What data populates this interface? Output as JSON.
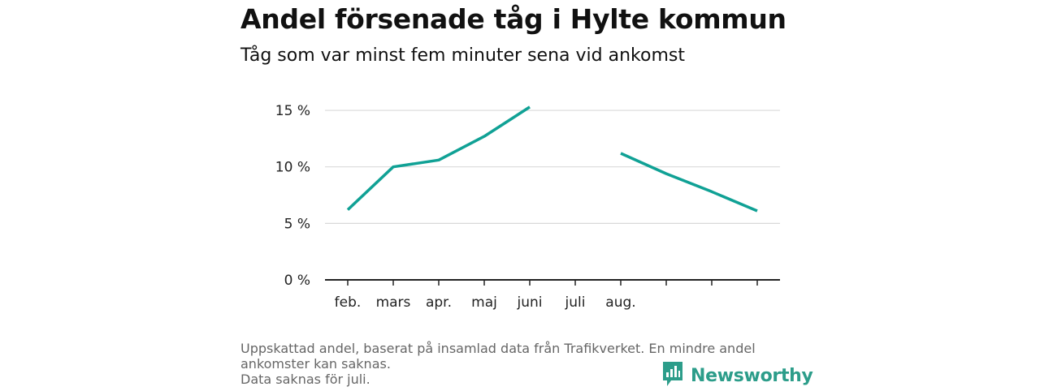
{
  "header": {
    "title": "Andel försenade tåg i Hylte kommun",
    "subtitle": "Tåg som var minst fem minuter sena vid ankomst"
  },
  "chart_data": {
    "type": "line",
    "categories": [
      "feb.",
      "mars",
      "apr.",
      "maj",
      "juni",
      "juli",
      "aug.",
      "",
      "",
      ""
    ],
    "y_tick_values": [
      0,
      5,
      10,
      15
    ],
    "y_tick_labels": [
      "0 %",
      "5 %",
      "10 %",
      "15 %"
    ],
    "ylim": [
      0,
      16.5
    ],
    "grid": true,
    "series": [
      {
        "values": [
          6.2,
          10.0,
          10.6,
          12.7,
          15.3,
          null,
          11.2,
          9.4,
          7.8,
          6.1
        ]
      }
    ],
    "line_color": "#10a195"
  },
  "footer": {
    "note_line1": "Uppskattad andel, baserat på insamlad data från Trafikverket. En mindre andel",
    "note_line2": "ankomster kan saknas.",
    "note_line3": "Data saknas för juli.",
    "brand": "Newsworthy",
    "brand_icon": "newsworthy-logo-icon",
    "brand_color": "#2c9d8a"
  }
}
